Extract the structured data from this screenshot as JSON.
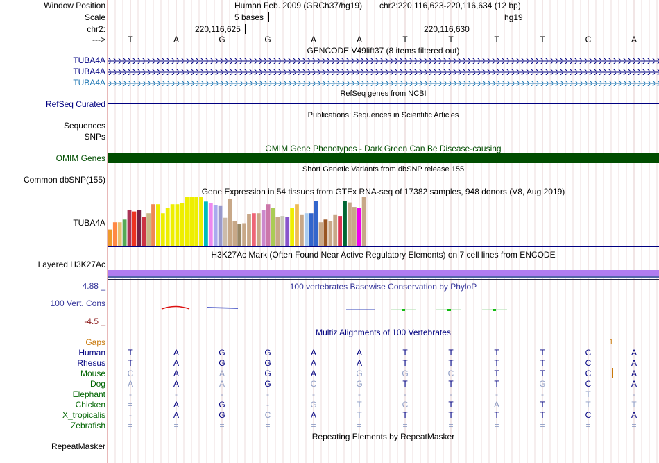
{
  "header": {
    "assembly": "Human Feb. 2009 (GRCh37/hg19)",
    "position": "chr2:220,116,623-220,116,634 (12 bp)",
    "scale_text": "5 bases",
    "scale_db": "hg19",
    "tick_left": "220,116,625",
    "tick_right": "220,116,630"
  },
  "labels": {
    "window_position": "Window Position",
    "scale": "Scale",
    "chr": "chr2:",
    "strand": "--->",
    "tuba4a_1": "TUBA4A",
    "tuba4a_2": "TUBA4A",
    "tuba4a_3": "TUBA4A",
    "refseq": "RefSeq Curated",
    "sequences": "Sequences",
    "snps": "SNPs",
    "omim": "OMIM Genes",
    "common_dbsnp": "Common dbSNP(155)",
    "gtex_gene": "TUBA4A",
    "h3k27ac": "Layered H3K27Ac",
    "cons_max": "4.88 _",
    "cons_name": "100 Vert. Cons",
    "cons_min": "-4.5 _",
    "gaps": "Gaps",
    "repeatmasker": "RepeatMasker"
  },
  "colors": {
    "navy": "#000080",
    "gencode_teal": "#1f77b4",
    "omim_green": "#004d00",
    "gaps_orange": "#c8780a",
    "species_green": "#006400",
    "cons_max_blue": "#333399",
    "cons_min_red": "#8b1a1a",
    "h3k27ac_purple": "#b07cf0",
    "h3k27ac_blue": "#5566aa"
  },
  "track_titles": {
    "gencode": "GENCODE V49lift37 (8 items filtered out)",
    "refseq": "RefSeq genes from NCBI",
    "publications": "Publications: Sequences in Scientific Articles",
    "omim": "OMIM Gene Phenotypes - Dark Green Can Be Disease-causing",
    "dbsnp": "Short Genetic Variants from dbSNP release 155",
    "gtex": "Gene Expression in 54 tissues from GTEx RNA-seq of 17382 samples, 948 donors (V8, Aug 2019)",
    "h3k27ac": "H3K27Ac Mark (Often Found Near Active Regulatory Elements) on 7 cell lines from ENCODE",
    "phylop": "100 vertebrates Basewise Conservation by PhyloP",
    "multiz": "Multiz Alignments of 100 Vertebrates",
    "repeatmasker": "Repeating Elements by RepeatMasker"
  },
  "reference_bases": [
    "T",
    "A",
    "G",
    "G",
    "A",
    "A",
    "T",
    "T",
    "T",
    "T",
    "C",
    "A"
  ],
  "gaps_marker": "1",
  "gtex_levels": [
    0.18,
    0.26,
    0.26,
    0.29,
    0.4,
    0.38,
    0.4,
    0.32,
    0.36,
    0.46,
    0.46,
    0.36,
    0.42,
    0.46,
    0.46,
    0.47,
    0.56,
    0.55,
    0.57,
    0.55,
    0.49,
    0.47,
    0.45,
    0.44,
    0.31,
    0.52,
    0.27,
    0.24,
    0.25,
    0.35,
    0.36,
    0.36,
    0.4,
    0.46,
    0.42,
    0.32,
    0.33,
    0.32,
    0.42,
    0.46,
    0.34,
    0.36,
    0.36,
    0.5,
    0.26,
    0.29,
    0.27,
    0.34,
    0.33,
    0.5,
    0.48,
    0.43,
    0.42,
    0.56
  ],
  "gtex_colors": [
    "#ee9a2c",
    "#ff8844",
    "#e8c070",
    "#55aa55",
    "#aa3355",
    "#ee3322",
    "#772244",
    "#cc3344",
    "#c8b888",
    "#ee8855",
    "#eeee00",
    "#eeee00",
    "#eeee00",
    "#eeee00",
    "#eeee00",
    "#eeee00",
    "#eeee00",
    "#eeee00",
    "#eeee00",
    "#eeee00",
    "#00bbbb",
    "#ee88ee",
    "#aaaaee",
    "#9999cc",
    "#ccbbaa",
    "#c8a888",
    "#c8a888",
    "#998866",
    "#c8a888",
    "#c8a888",
    "#ee6677",
    "#c8a888",
    "#cc88cc",
    "#cc77aa",
    "#aacc55",
    "#c8a888",
    "#c8c8b8",
    "#8855cc",
    "#eeee00",
    "#eebb55",
    "#c8a888",
    "#aaccee",
    "#3366cc",
    "#3366cc",
    "#c8a888",
    "#995522",
    "#c8a888",
    "#c8a888",
    "#dd3355",
    "#006633",
    "#c8a888",
    "#c8a888",
    "#ee00ee",
    "#c8a888"
  ],
  "species": [
    {
      "name": "Human",
      "color": "#000080",
      "bases": [
        "T",
        "A",
        "G",
        "G",
        "A",
        "A",
        "T",
        "T",
        "T",
        "T",
        "C",
        "A"
      ],
      "dim": [
        0,
        0,
        0,
        0,
        0,
        0,
        0,
        0,
        0,
        0,
        0,
        0
      ]
    },
    {
      "name": "Rhesus",
      "color": "#000080",
      "bases": [
        "T",
        "A",
        "G",
        "G",
        "A",
        "A",
        "T",
        "T",
        "T",
        "T",
        "C",
        "A"
      ],
      "dim": [
        0,
        0,
        0,
        0,
        0,
        0,
        0,
        0,
        0,
        0,
        0,
        0
      ]
    },
    {
      "name": "Mouse",
      "color": "#006400",
      "bases": [
        "C",
        "A",
        "A",
        "G",
        "A",
        "G",
        "G",
        "C",
        "T",
        "T",
        "C",
        "A"
      ],
      "dim": [
        1,
        0,
        1,
        0,
        0,
        1,
        1,
        1,
        0,
        0,
        0,
        0
      ]
    },
    {
      "name": "Dog",
      "color": "#006400",
      "bases": [
        "A",
        "A",
        "A",
        "G",
        "C",
        "G",
        "T",
        "T",
        "T",
        "G",
        "C",
        "A"
      ],
      "dim": [
        1,
        0,
        1,
        0,
        1,
        1,
        0,
        0,
        0,
        1,
        0,
        0
      ]
    },
    {
      "name": "Elephant",
      "color": "#006400",
      "bases": [
        "-",
        "-",
        "-",
        "-",
        "-",
        "-",
        "-",
        "-",
        "-",
        "-",
        "T",
        "-"
      ],
      "dim": [
        1,
        1,
        1,
        1,
        1,
        1,
        1,
        1,
        1,
        1,
        1,
        1
      ]
    },
    {
      "name": "Chicken",
      "color": "#006400",
      "bases": [
        "=",
        "A",
        "G",
        "-",
        "G",
        "T",
        "C",
        "T",
        "A",
        "T",
        "T",
        "T"
      ],
      "dim": [
        1,
        0,
        0,
        1,
        1,
        1,
        1,
        0,
        1,
        0,
        1,
        1
      ]
    },
    {
      "name": "X_tropicalis",
      "color": "#006400",
      "bases": [
        "-",
        "A",
        "G",
        "C",
        "A",
        "T",
        "T",
        "T",
        "T",
        "T",
        "C",
        "A"
      ],
      "dim": [
        1,
        0,
        0,
        1,
        0,
        1,
        0,
        0,
        0,
        0,
        0,
        0
      ]
    },
    {
      "name": "Zebrafish",
      "color": "#006400",
      "bases": [
        "=",
        "=",
        "=",
        "=",
        "=",
        "=",
        "=",
        "=",
        "=",
        "=",
        "=",
        "="
      ],
      "dim": [
        1,
        1,
        1,
        1,
        1,
        1,
        1,
        1,
        1,
        1,
        1,
        1
      ]
    }
  ]
}
